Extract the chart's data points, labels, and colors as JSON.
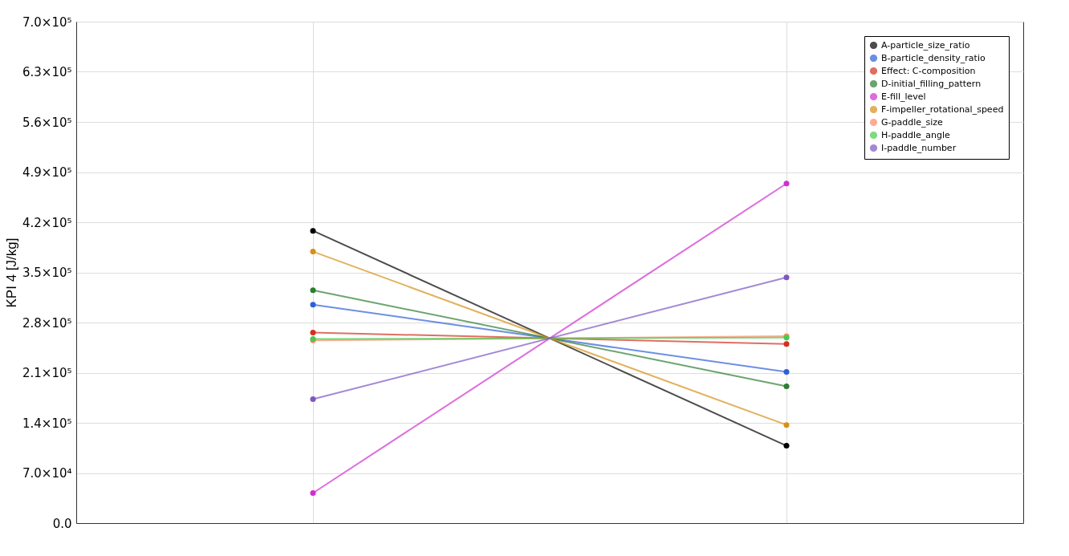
{
  "chart_data": {
    "type": "line",
    "ylabel": "KPI 4 [J/kg]",
    "categories": [
      null,
      null
    ],
    "ylim": [
      0,
      700000
    ],
    "yticks": [
      {
        "value": 0,
        "label": "0.0"
      },
      {
        "value": 70000,
        "label": "7.0×10⁴"
      },
      {
        "value": 140000,
        "label": "1.4×10⁵"
      },
      {
        "value": 210000,
        "label": "2.1×10⁵"
      },
      {
        "value": 280000,
        "label": "2.8×10⁵"
      },
      {
        "value": 350000,
        "label": "3.5×10⁵"
      },
      {
        "value": 420000,
        "label": "4.2×10⁵"
      },
      {
        "value": 490000,
        "label": "4.9×10⁵"
      },
      {
        "value": 560000,
        "label": "5.6×10⁵"
      },
      {
        "value": 630000,
        "label": "6.3×10⁵"
      },
      {
        "value": 700000,
        "label": "7.0×10⁵"
      }
    ],
    "grid": true,
    "legend": "top right",
    "marker": "circle",
    "line_style": "solid",
    "tick_labels": "y",
    "series": [
      {
        "name": "A-particle_size_ratio",
        "color": "#000000",
        "values": [
          408000,
          108000
        ]
      },
      {
        "name": "B-particle_density_ratio",
        "color": "#2f5fd8",
        "values": [
          305000,
          211000
        ]
      },
      {
        "name": "Effect: C-composition",
        "color": "#d62f1f",
        "values": [
          266000,
          250000
        ]
      },
      {
        "name": "D-initial_filling_pattern",
        "color": "#2e7d32",
        "values": [
          325000,
          191000
        ]
      },
      {
        "name": "E-fill_level",
        "color": "#d02fd0",
        "values": [
          42000,
          474000
        ]
      },
      {
        "name": "F-impeller_rotational_speed",
        "color": "#d4911a",
        "values": [
          379000,
          137000
        ]
      },
      {
        "name": "G-paddle_size",
        "color": "#ff8a65",
        "values": [
          255000,
          261000
        ]
      },
      {
        "name": "H-paddle_angle",
        "color": "#4cc850",
        "values": [
          257000,
          259000
        ]
      },
      {
        "name": "I-paddle_number",
        "color": "#7e57c2",
        "values": [
          173000,
          343000
        ]
      }
    ]
  }
}
